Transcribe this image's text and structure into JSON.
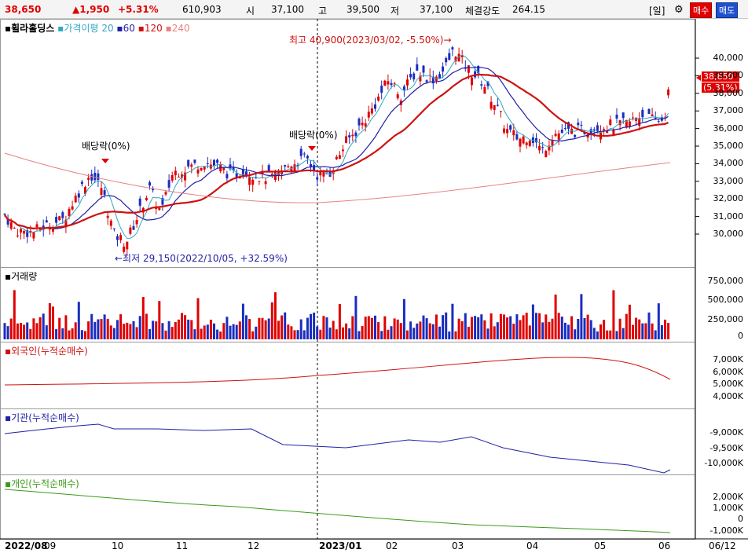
{
  "header": {
    "price": "38,650",
    "change": "▲1,950",
    "change_pct": "+5.31%",
    "volume": "610,903",
    "open_label": "시",
    "open": "37,100",
    "high_label": "고",
    "high": "39,500",
    "low_label": "저",
    "low": "37,100",
    "strength_label": "체결강도",
    "strength": "264.15",
    "period_button": "[일]",
    "buy_button": "매수",
    "sell_button": "매도"
  },
  "price_panel": {
    "title": "휠라홀딩스",
    "ma_label": "가격이평",
    "ma_periods": [
      "20",
      "60",
      "120",
      "240"
    ],
    "ma_colors": [
      "#31a7c4",
      "#1f1fa8",
      "#d01010",
      "#e98080"
    ],
    "annotation_high": "최고 40,900(2023/03/02, -5.50%)→",
    "annotation_low": "←최저 29,150(2022/10/05, +32.59%)",
    "dividend1": "배당락(0%)",
    "dividend2": "배당락(0%)",
    "current_price_tag": "38,650",
    "current_pct_tag": "(5.31%)",
    "y_labels": [
      "40,000",
      "39,000",
      "38,000",
      "37,000",
      "36,000",
      "35,000",
      "34,000",
      "33,000",
      "32,000",
      "31,000",
      "30,000"
    ]
  },
  "volume_panel": {
    "title": "거래량",
    "y_labels": [
      "750,000",
      "500,000",
      "250,000",
      "0"
    ]
  },
  "foreign_panel": {
    "title": "외국인(누적순매수)",
    "y_labels": [
      "7,000K",
      "6,000K",
      "5,000K",
      "4,000K"
    ]
  },
  "institution_panel": {
    "title": "기관(누적순매수)",
    "y_labels": [
      "-9,000K",
      "-9,500K",
      "-10,000K"
    ]
  },
  "individual_panel": {
    "title": "개인(누적순매수)",
    "y_labels": [
      "2,000K",
      "1,000K",
      "0",
      "-1,000K"
    ]
  },
  "x_axis": [
    "2022/08",
    "09",
    "10",
    "11",
    "12",
    "2023/01",
    "02",
    "03",
    "04",
    "05",
    "06",
    "06/12"
  ]
}
